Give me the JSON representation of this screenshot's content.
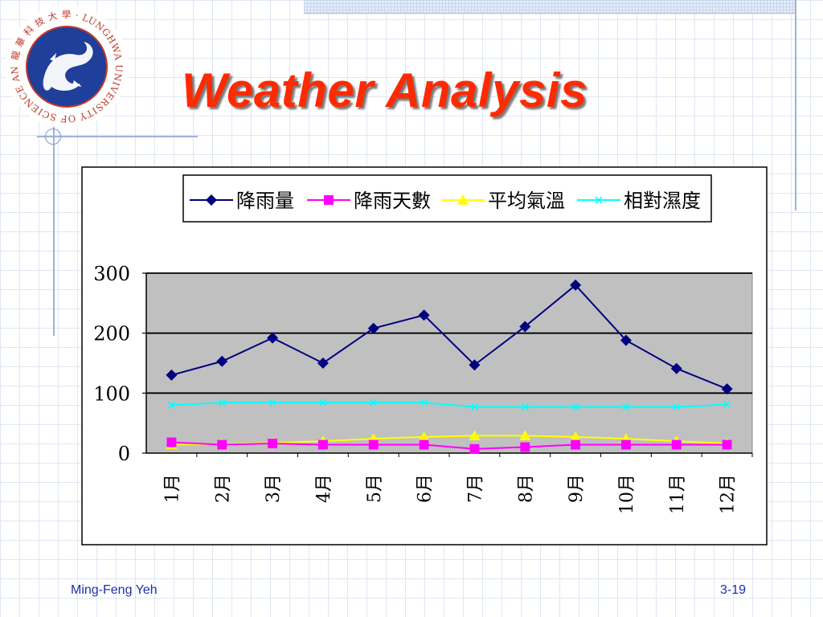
{
  "slide": {
    "title": "Weather Analysis",
    "author": "Ming-Feng Yeh",
    "page_number": "3-19",
    "logo": {
      "icon": "university-dragon-seal-logo",
      "chinese_name": "龍 華 科 技 大 學",
      "english_name": "LUNGHWA UNIVERSITY OF SCIENCE AND TECHNOLOGY"
    }
  },
  "chart_data": {
    "type": "line",
    "categories": [
      "1月",
      "2月",
      "3月",
      "4月",
      "5月",
      "6月",
      "7月",
      "8月",
      "9月",
      "10月",
      "11月",
      "12月"
    ],
    "ylim": [
      0,
      300
    ],
    "yticks": [
      0,
      100,
      200,
      300
    ],
    "grid": true,
    "legend_position": "top",
    "plot_background": "#c0c0c0",
    "series": [
      {
        "name": "降雨量",
        "marker": "diamond",
        "color": "#000080",
        "values": [
          130,
          153,
          192,
          150,
          208,
          230,
          147,
          211,
          280,
          188,
          141,
          107
        ]
      },
      {
        "name": "降雨天數",
        "marker": "square",
        "color": "#ff00ff",
        "values": [
          18,
          14,
          16,
          14,
          14,
          14,
          7,
          10,
          14,
          14,
          14,
          14
        ]
      },
      {
        "name": "平均氣溫",
        "marker": "triangle",
        "color": "#ffff00",
        "values": [
          14,
          15,
          17,
          20,
          24,
          27,
          29,
          29,
          27,
          24,
          20,
          16
        ]
      },
      {
        "name": "相對濕度",
        "marker": "x",
        "color": "#00ffff",
        "values": [
          80,
          84,
          84,
          84,
          84,
          84,
          77,
          77,
          77,
          77,
          77,
          81
        ]
      }
    ]
  }
}
